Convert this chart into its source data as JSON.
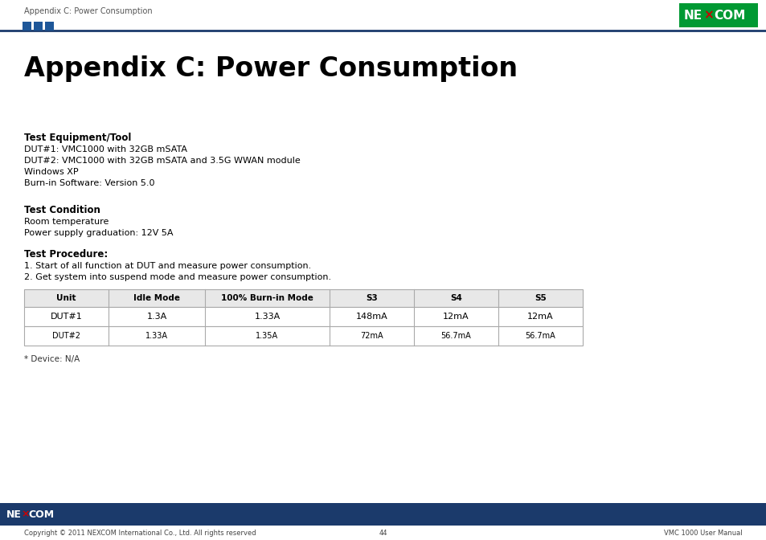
{
  "page_header_text": "Appendix C: Power Consumption",
  "title": "Appendix C: Power Consumption",
  "section1_title": "Test Equipment/Tool",
  "section1_lines": [
    "DUT#1: VMC1000 with 32GB mSATA",
    "DUT#2: VMC1000 with 32GB mSATA and 3.5G WWAN module",
    "Windows XP",
    "Burn-in Software: Version 5.0"
  ],
  "section2_title": "Test Condition",
  "section2_lines": [
    "Room temperature",
    "Power supply graduation: 12V 5A"
  ],
  "section3_title": "Test Procedure:",
  "section3_lines": [
    "1. Start of all function at DUT and measure power consumption.",
    "2. Get system into suspend mode and measure power consumption."
  ],
  "table_headers": [
    "Unit",
    "Idle Mode",
    "100% Burn-in Mode",
    "S3",
    "S4",
    "S5"
  ],
  "table_row1": [
    "DUT#1",
    "1.3A",
    "1.33A",
    "148mA",
    "12mA",
    "12mA"
  ],
  "table_row2": [
    "DUT#2",
    "1.33A",
    "1.35A",
    "72mA",
    "56.7mA",
    "56.7mA"
  ],
  "table_note": "* Device: N/A",
  "footer_left": "Copyright © 2011 NEXCOM International Co., Ltd. All rights reserved",
  "footer_center": "44",
  "footer_right": "VMC 1000 User Manual",
  "dark_blue": "#1b3a6b",
  "mid_blue": "#1e5799",
  "nexcom_green": "#009933",
  "white": "#ffffff",
  "black": "#000000",
  "light_gray": "#e8e8e8",
  "border_gray": "#aaaaaa",
  "text_gray": "#555555"
}
